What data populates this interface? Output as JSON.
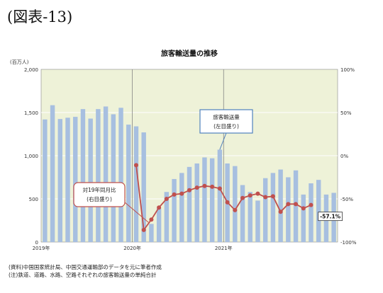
{
  "figure_label": "(図表-13)",
  "notes": [
    "(資料)中国国家統計局、中国交通運輸部のデータを元に筆者作成",
    "(注)鉄道、道路、水路、空路それぞれの旅客輸送量の単純合計"
  ],
  "colors": {
    "plot_bg": "#eef2d8",
    "bar": "#a7bfe0",
    "line": "#c0504d",
    "grid": "#ffffff",
    "callout_line_border": "#c0504d",
    "callout_bar_border": "#4f81bd"
  },
  "chart_data": {
    "type": "bar+line",
    "title": "旅客輸送量の推移",
    "ylabel_left": "(百万人)",
    "ylim_left": [
      0,
      2000
    ],
    "yticks_left": [
      "0",
      "500",
      "1,000",
      "1,500",
      "2,000"
    ],
    "ylim_right": [
      -100,
      100
    ],
    "yticks_right": [
      "-100%",
      "-50%",
      "0%",
      "50%",
      "100%"
    ],
    "x_year_labels": [
      {
        "label": "2019年",
        "index": 0
      },
      {
        "label": "2020年",
        "index": 12
      },
      {
        "label": "2021年",
        "index": 24
      }
    ],
    "series": [
      {
        "axis": "left",
        "kind": "bar",
        "values": [
          1420,
          1585,
          1425,
          1440,
          1450,
          1540,
          1430,
          1540,
          1570,
          1480,
          1555,
          1360,
          1340,
          1270,
          210,
          390,
          580,
          730,
          800,
          870,
          910,
          980,
          970,
          1070,
          910,
          880,
          660,
          580,
          480,
          740,
          800,
          840,
          750,
          830,
          550,
          680,
          720,
          550,
          570
        ]
      },
      {
        "axis": "right",
        "kind": "line",
        "values": [
          null,
          null,
          null,
          null,
          null,
          null,
          null,
          null,
          null,
          null,
          null,
          null,
          -11,
          -86,
          -74,
          -60,
          -50,
          -45,
          -44,
          -40,
          -37,
          -35,
          -36,
          -38,
          -54,
          -63,
          -49,
          -46,
          -44,
          -48,
          -47,
          -65,
          -56,
          -56,
          -61,
          -57.1
        ]
      }
    ],
    "annotations": [
      {
        "text_lines": [
          "対19年同月比",
          "(右目盛り)"
        ]
      },
      {
        "text_lines": [
          "旅客輸送量",
          "(左目盛り)"
        ]
      }
    ],
    "last_value_label": "-57.1%"
  }
}
